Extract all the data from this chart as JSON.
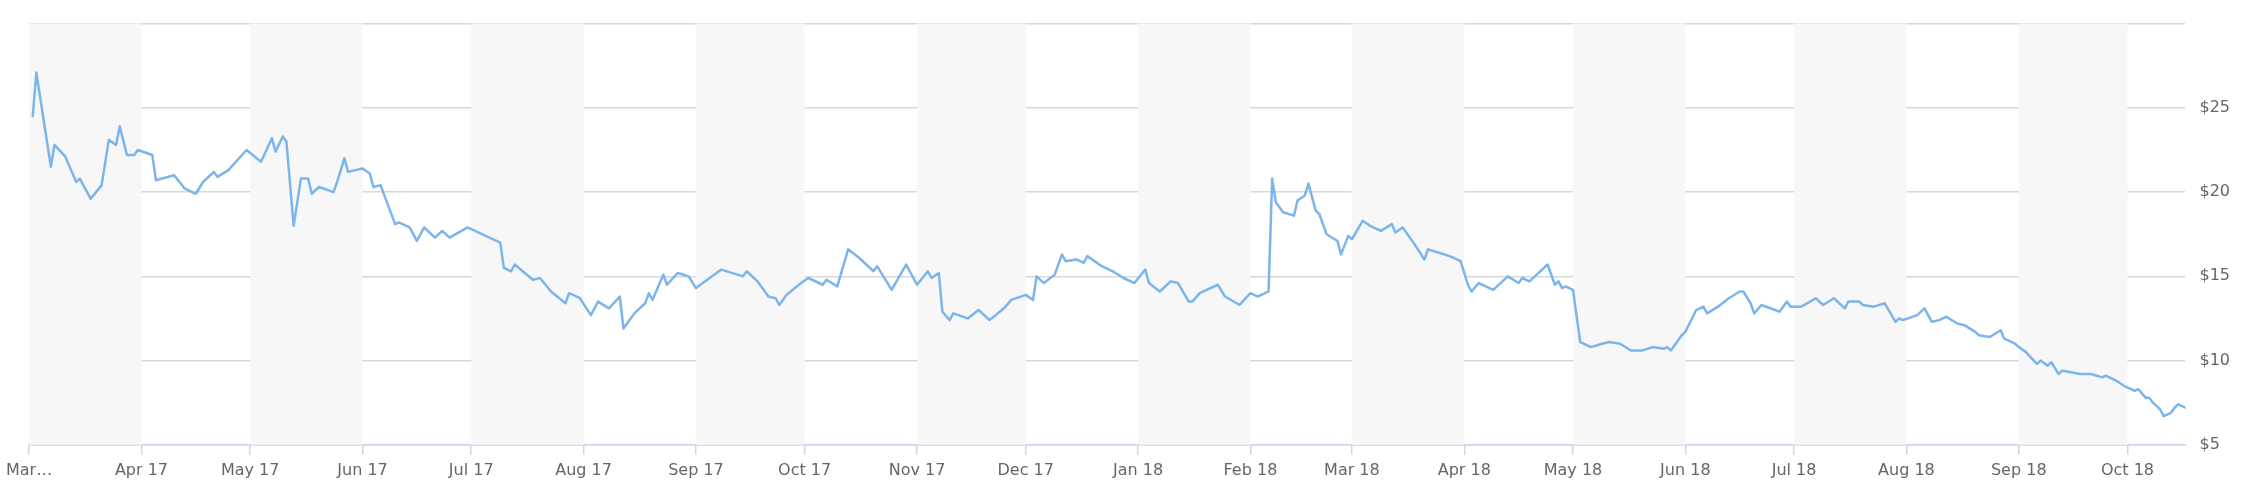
{
  "chart_data": {
    "type": "line",
    "x": [
      "2017-03-02",
      "2017-03-03",
      "2017-03-07",
      "2017-03-08",
      "2017-03-11",
      "2017-03-14",
      "2017-03-15",
      "2017-03-18",
      "2017-03-21",
      "2017-03-23",
      "2017-03-25",
      "2017-03-26",
      "2017-03-28",
      "2017-03-30",
      "2017-03-31",
      "2017-04-04",
      "2017-04-05",
      "2017-04-10",
      "2017-04-13",
      "2017-04-16",
      "2017-04-18",
      "2017-04-21",
      "2017-04-22",
      "2017-04-25",
      "2017-04-30",
      "2017-05-04",
      "2017-05-07",
      "2017-05-08",
      "2017-05-10",
      "2017-05-11",
      "2017-05-13",
      "2017-05-15",
      "2017-05-17",
      "2017-05-18",
      "2017-05-20",
      "2017-05-24",
      "2017-05-25",
      "2017-05-27",
      "2017-05-28",
      "2017-06-01",
      "2017-06-03",
      "2017-06-04",
      "2017-06-06",
      "2017-06-10",
      "2017-06-11",
      "2017-06-14",
      "2017-06-16",
      "2017-06-18",
      "2017-06-21",
      "2017-06-23",
      "2017-06-25",
      "2017-06-30",
      "2017-07-06",
      "2017-07-09",
      "2017-07-10",
      "2017-07-12",
      "2017-07-13",
      "2017-07-18",
      "2017-07-20",
      "2017-07-23",
      "2017-07-27",
      "2017-07-28",
      "2017-07-31",
      "2017-08-03",
      "2017-08-05",
      "2017-08-08",
      "2017-08-11",
      "2017-08-12",
      "2017-08-15",
      "2017-08-18",
      "2017-08-19",
      "2017-08-20",
      "2017-08-23",
      "2017-08-24",
      "2017-08-27",
      "2017-08-30",
      "2017-09-01",
      "2017-09-08",
      "2017-09-14",
      "2017-09-15",
      "2017-09-18",
      "2017-09-21",
      "2017-09-23",
      "2017-09-24",
      "2017-09-26",
      "2017-09-30",
      "2017-10-02",
      "2017-10-06",
      "2017-10-07",
      "2017-10-10",
      "2017-10-13",
      "2017-10-16",
      "2017-10-20",
      "2017-10-21",
      "2017-10-25",
      "2017-10-29",
      "2017-11-01",
      "2017-11-04",
      "2017-11-05",
      "2017-11-07",
      "2017-11-08",
      "2017-11-10",
      "2017-11-11",
      "2017-11-15",
      "2017-11-18",
      "2017-11-21",
      "2017-11-25",
      "2017-11-27",
      "2017-12-01",
      "2017-12-03",
      "2017-12-04",
      "2017-12-06",
      "2017-12-09",
      "2017-12-11",
      "2017-12-12",
      "2017-12-15",
      "2017-12-17",
      "2017-12-18",
      "2017-12-22",
      "2017-12-25",
      "2017-12-28",
      "2017-12-31",
      "2018-01-03",
      "2018-01-04",
      "2018-01-07",
      "2018-01-10",
      "2018-01-12",
      "2018-01-15",
      "2018-01-16",
      "2018-01-18",
      "2018-01-23",
      "2018-01-25",
      "2018-01-29",
      "2018-02-01",
      "2018-02-03",
      "2018-02-06",
      "2018-02-07",
      "2018-02-08",
      "2018-02-10",
      "2018-02-13",
      "2018-02-14",
      "2018-02-16",
      "2018-02-17",
      "2018-02-19",
      "2018-02-20",
      "2018-02-22",
      "2018-02-25",
      "2018-02-26",
      "2018-02-28",
      "2018-03-01",
      "2018-03-04",
      "2018-03-06",
      "2018-03-09",
      "2018-03-12",
      "2018-03-13",
      "2018-03-15",
      "2018-03-18",
      "2018-03-21",
      "2018-03-22",
      "2018-03-25",
      "2018-03-28",
      "2018-03-31",
      "2018-04-02",
      "2018-04-03",
      "2018-04-05",
      "2018-04-09",
      "2018-04-13",
      "2018-04-16",
      "2018-04-17",
      "2018-04-19",
      "2018-04-24",
      "2018-04-26",
      "2018-04-27",
      "2018-04-28",
      "2018-04-29",
      "2018-05-01",
      "2018-05-03",
      "2018-05-06",
      "2018-05-09",
      "2018-05-11",
      "2018-05-14",
      "2018-05-17",
      "2018-05-20",
      "2018-05-23",
      "2018-05-26",
      "2018-05-27",
      "2018-05-28",
      "2018-05-31",
      "2018-06-01",
      "2018-06-04",
      "2018-06-06",
      "2018-06-07",
      "2018-06-10",
      "2018-06-13",
      "2018-06-16",
      "2018-06-17",
      "2018-06-19",
      "2018-06-20",
      "2018-06-22",
      "2018-06-27",
      "2018-06-29",
      "2018-06-30",
      "2018-07-03",
      "2018-07-07",
      "2018-07-09",
      "2018-07-12",
      "2018-07-15",
      "2018-07-16",
      "2018-07-19",
      "2018-07-20",
      "2018-07-23",
      "2018-07-26",
      "2018-07-29",
      "2018-07-30",
      "2018-07-31",
      "2018-08-04",
      "2018-08-06",
      "2018-08-08",
      "2018-08-10",
      "2018-08-12",
      "2018-08-15",
      "2018-08-17",
      "2018-08-20",
      "2018-08-21",
      "2018-08-24",
      "2018-08-27",
      "2018-08-28",
      "2018-08-31",
      "2018-09-01",
      "2018-09-03",
      "2018-09-06",
      "2018-09-07",
      "2018-09-09",
      "2018-09-10",
      "2018-09-12",
      "2018-09-13",
      "2018-09-18",
      "2018-09-21",
      "2018-09-24",
      "2018-09-25",
      "2018-09-28",
      "2018-09-30",
      "2018-10-03",
      "2018-10-04",
      "2018-10-06",
      "2018-10-07",
      "2018-10-08",
      "2018-10-10",
      "2018-10-11",
      "2018-10-13",
      "2018-10-14",
      "2018-10-15",
      "2018-10-17"
    ],
    "series": [
      {
        "color": "#7cb5ec",
        "values": [
          24.5,
          27.1,
          21.5,
          22.8,
          22.1,
          20.6,
          20.8,
          19.6,
          20.4,
          23.1,
          22.8,
          23.9,
          22.2,
          22.2,
          22.5,
          22.2,
          20.7,
          21.0,
          20.2,
          19.9,
          20.6,
          21.2,
          20.9,
          21.3,
          22.5,
          21.8,
          23.2,
          22.4,
          23.3,
          23.0,
          18.0,
          20.8,
          20.8,
          19.9,
          20.3,
          20.0,
          20.6,
          22.0,
          21.2,
          21.4,
          21.1,
          20.3,
          20.4,
          18.1,
          18.2,
          17.9,
          17.1,
          17.9,
          17.3,
          17.7,
          17.3,
          17.9,
          17.3,
          17.0,
          15.5,
          15.3,
          15.7,
          14.8,
          14.9,
          14.1,
          13.4,
          14.0,
          13.7,
          12.7,
          13.5,
          13.1,
          13.8,
          11.9,
          12.8,
          13.4,
          14.0,
          13.6,
          15.1,
          14.5,
          15.2,
          15.0,
          14.3,
          15.4,
          15.0,
          15.3,
          14.7,
          13.8,
          13.7,
          13.3,
          13.9,
          14.6,
          14.9,
          14.5,
          14.8,
          14.4,
          16.6,
          16.1,
          15.3,
          15.6,
          14.2,
          15.7,
          14.5,
          15.3,
          14.9,
          15.2,
          12.9,
          12.4,
          12.8,
          12.5,
          13.0,
          12.4,
          13.1,
          13.6,
          13.9,
          13.6,
          15.0,
          14.6,
          15.1,
          16.3,
          15.9,
          16.0,
          15.8,
          16.2,
          15.6,
          15.3,
          14.9,
          14.6,
          15.4,
          14.6,
          14.1,
          14.7,
          14.6,
          13.5,
          13.5,
          14.0,
          14.5,
          13.8,
          13.3,
          14.0,
          13.8,
          14.1,
          20.8,
          19.4,
          18.8,
          18.6,
          19.5,
          19.8,
          20.5,
          18.9,
          18.7,
          17.5,
          17.1,
          16.3,
          17.4,
          17.2,
          18.3,
          18.0,
          17.7,
          18.1,
          17.6,
          17.9,
          17.0,
          16.0,
          16.6,
          16.4,
          16.2,
          15.9,
          14.5,
          14.1,
          14.6,
          14.2,
          15.0,
          14.6,
          14.9,
          14.7,
          15.7,
          14.5,
          14.7,
          14.3,
          14.4,
          14.2,
          11.1,
          10.8,
          11.0,
          11.1,
          11.0,
          10.6,
          10.6,
          10.8,
          10.7,
          10.8,
          10.6,
          11.5,
          11.7,
          13.0,
          13.2,
          12.8,
          13.2,
          13.7,
          14.1,
          14.1,
          13.4,
          12.8,
          13.3,
          12.9,
          13.5,
          13.2,
          13.2,
          13.7,
          13.3,
          13.7,
          13.1,
          13.5,
          13.5,
          13.3,
          13.2,
          13.4,
          12.3,
          12.5,
          12.4,
          12.7,
          13.1,
          12.3,
          12.4,
          12.6,
          12.2,
          12.1,
          11.7,
          11.5,
          11.4,
          11.8,
          11.3,
          11.0,
          10.8,
          10.5,
          9.8,
          10.0,
          9.7,
          9.9,
          9.2,
          9.4,
          9.2,
          9.2,
          9.0,
          9.1,
          8.8,
          8.5,
          8.2,
          8.3,
          7.8,
          7.8,
          7.5,
          7.1,
          6.7,
          6.9,
          7.2,
          7.4,
          7.2
        ]
      }
    ],
    "xlim": [
      "2017-03-01",
      "2018-10-17"
    ],
    "xticks": [
      {
        "value": "2017-03-01",
        "label": "Mar…"
      },
      {
        "value": "2017-04-01",
        "label": "Apr 17"
      },
      {
        "value": "2017-05-01",
        "label": "May 17"
      },
      {
        "value": "2017-06-01",
        "label": "Jun 17"
      },
      {
        "value": "2017-07-01",
        "label": "Jul 17"
      },
      {
        "value": "2017-08-01",
        "label": "Aug 17"
      },
      {
        "value": "2017-09-01",
        "label": "Sep 17"
      },
      {
        "value": "2017-10-01",
        "label": "Oct 17"
      },
      {
        "value": "2017-11-01",
        "label": "Nov 17"
      },
      {
        "value": "2017-12-01",
        "label": "Dec 17"
      },
      {
        "value": "2018-01-01",
        "label": "Jan 18"
      },
      {
        "value": "2018-02-01",
        "label": "Feb 18"
      },
      {
        "value": "2018-03-01",
        "label": "Mar 18"
      },
      {
        "value": "2018-04-01",
        "label": "Apr 18"
      },
      {
        "value": "2018-05-01",
        "label": "May 18"
      },
      {
        "value": "2018-06-01",
        "label": "Jun 18"
      },
      {
        "value": "2018-07-01",
        "label": "Jul 18"
      },
      {
        "value": "2018-08-01",
        "label": "Aug 18"
      },
      {
        "value": "2018-09-01",
        "label": "Sep 18"
      },
      {
        "value": "2018-10-01",
        "label": "Oct 18"
      }
    ],
    "ylim": [
      5,
      30
    ],
    "yticks": [
      {
        "value": 5,
        "label": "$5"
      },
      {
        "value": 10,
        "label": "$10"
      },
      {
        "value": 15,
        "label": "$15"
      },
      {
        "value": 20,
        "label": "$20"
      },
      {
        "value": 25,
        "label": "$25"
      },
      {
        "value": 30,
        "label": null
      }
    ],
    "bands": [
      {
        "axis": "x",
        "from": "2017-03-01",
        "to": "2017-04-01",
        "color": "#f7f7f7"
      },
      {
        "axis": "x",
        "from": "2017-05-01",
        "to": "2017-06-01",
        "color": "#f7f7f7"
      },
      {
        "axis": "x",
        "from": "2017-07-01",
        "to": "2017-08-01",
        "color": "#f7f7f7"
      },
      {
        "axis": "x",
        "from": "2017-09-01",
        "to": "2017-10-01",
        "color": "#f7f7f7"
      },
      {
        "axis": "x",
        "from": "2017-11-01",
        "to": "2017-12-01",
        "color": "#f7f7f7"
      },
      {
        "axis": "x",
        "from": "2018-01-01",
        "to": "2018-02-01",
        "color": "#f7f7f7"
      },
      {
        "axis": "x",
        "from": "2018-03-01",
        "to": "2018-04-01",
        "color": "#f7f7f7"
      },
      {
        "axis": "x",
        "from": "2018-05-01",
        "to": "2018-06-01",
        "color": "#f7f7f7"
      },
      {
        "axis": "x",
        "from": "2018-07-01",
        "to": "2018-08-01",
        "color": "#f7f7f7"
      },
      {
        "axis": "x",
        "from": "2018-09-01",
        "to": "2018-10-01",
        "color": "#f7f7f7"
      }
    ],
    "grid": "y",
    "legend": false,
    "marker": "none",
    "line_style": "solid"
  }
}
